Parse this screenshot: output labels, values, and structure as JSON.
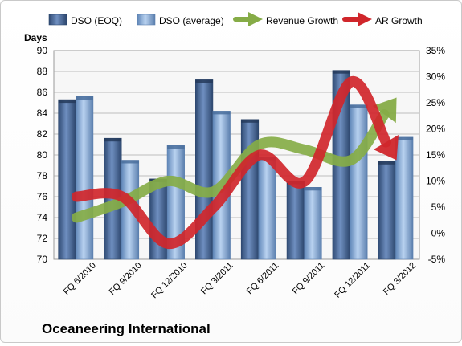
{
  "chart_data": {
    "type": "bar",
    "title": "Oceaneering International",
    "ylabel": "Days",
    "categories": [
      "FQ 6/2010",
      "FQ 9/2010",
      "FQ 12/2010",
      "FQ 3/2011",
      "FQ 6/2011",
      "FQ 9/2011",
      "FQ 12/2011",
      "FQ 3/2012"
    ],
    "ylim": [
      70,
      90
    ],
    "yticks": [
      70,
      72,
      74,
      76,
      78,
      80,
      82,
      84,
      86,
      88,
      90
    ],
    "y2lim": [
      -5,
      35
    ],
    "y2ticks": [
      "-5%",
      "0%",
      "5%",
      "10%",
      "15%",
      "20%",
      "25%",
      "30%",
      "35%"
    ],
    "y2ticks_values": [
      -5,
      0,
      5,
      10,
      15,
      20,
      25,
      30,
      35
    ],
    "series": [
      {
        "name": "DSO (EOQ)",
        "kind": "bar",
        "axis": "left",
        "color": "#4f6f9f",
        "values": [
          85.3,
          81.6,
          77.7,
          87.2,
          83.4,
          77.5,
          88.1,
          79.4
        ]
      },
      {
        "name": "DSO (average)",
        "kind": "bar",
        "axis": "left",
        "color": "#8fb3de",
        "values": [
          85.6,
          79.5,
          80.9,
          84.2,
          79.8,
          76.9,
          84.8,
          81.7
        ]
      },
      {
        "name": "Revenue Growth",
        "kind": "arrow-line",
        "axis": "right",
        "color": "#86ac47",
        "values": [
          3,
          6,
          10,
          8,
          17,
          16,
          14,
          26
        ]
      },
      {
        "name": "AR Growth",
        "kind": "arrow-line",
        "axis": "right",
        "color": "#d0262b",
        "values": [
          7,
          7,
          -2,
          5,
          15,
          10,
          29,
          14
        ]
      }
    ],
    "legend": "top",
    "grid": true
  }
}
